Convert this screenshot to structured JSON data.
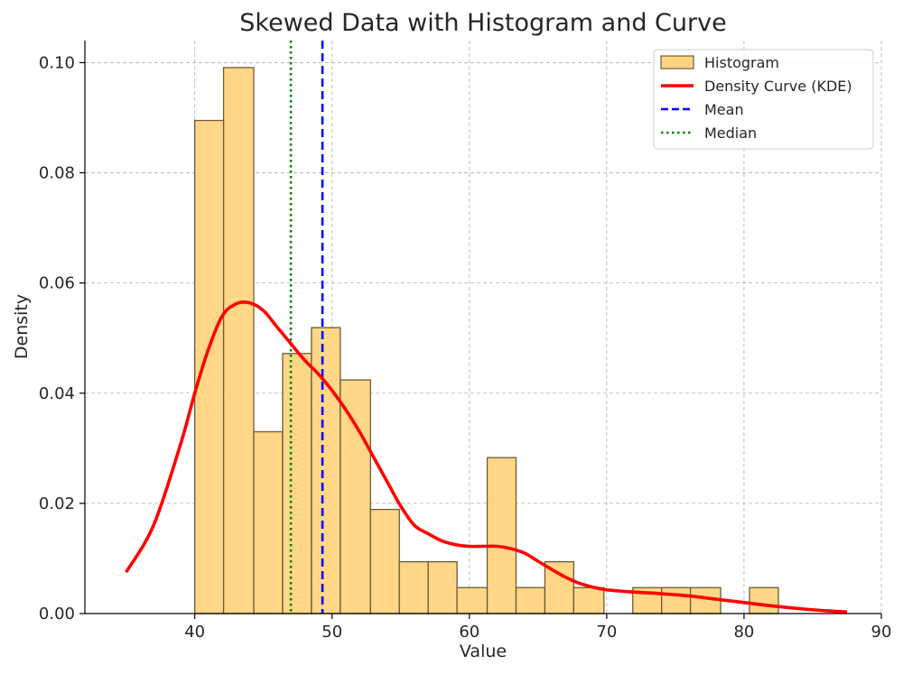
{
  "chart_data": {
    "type": "bar",
    "title": "Skewed Data with Histogram and Curve",
    "xlabel": "Value",
    "ylabel": "Density",
    "xlim": [
      32,
      90
    ],
    "ylim": [
      0,
      0.104
    ],
    "xticks": [
      40,
      50,
      60,
      70,
      80,
      90
    ],
    "yticks": [
      0.0,
      0.02,
      0.04,
      0.06,
      0.08,
      0.1
    ],
    "xtick_labels": [
      "40",
      "50",
      "60",
      "70",
      "80",
      "90"
    ],
    "ytick_labels": [
      "0.00",
      "0.02",
      "0.04",
      "0.06",
      "0.08",
      "0.10"
    ],
    "grid": true,
    "legend_position": "top-right",
    "histogram": {
      "name": "Histogram",
      "color": "#ffd580",
      "edge_color": "#6b5a3a",
      "bins": [
        {
          "x0": 40.0,
          "x1": 42.1,
          "density": 0.0895
        },
        {
          "x0": 42.1,
          "x1": 44.3,
          "density": 0.0991
        },
        {
          "x0": 44.3,
          "x1": 46.4,
          "density": 0.033
        },
        {
          "x0": 46.4,
          "x1": 48.5,
          "density": 0.0472
        },
        {
          "x0": 48.5,
          "x1": 50.6,
          "density": 0.0519
        },
        {
          "x0": 50.6,
          "x1": 52.8,
          "density": 0.0424
        },
        {
          "x0": 52.8,
          "x1": 54.9,
          "density": 0.0189
        },
        {
          "x0": 54.9,
          "x1": 57.0,
          "density": 0.0094
        },
        {
          "x0": 57.0,
          "x1": 59.1,
          "density": 0.0094
        },
        {
          "x0": 59.1,
          "x1": 61.3,
          "density": 0.0047
        },
        {
          "x0": 61.3,
          "x1": 63.4,
          "density": 0.0283
        },
        {
          "x0": 63.4,
          "x1": 65.5,
          "density": 0.0047
        },
        {
          "x0": 65.5,
          "x1": 67.6,
          "density": 0.0094
        },
        {
          "x0": 67.6,
          "x1": 69.8,
          "density": 0.0047
        },
        {
          "x0": 69.8,
          "x1": 71.9,
          "density": 0.0
        },
        {
          "x0": 71.9,
          "x1": 74.0,
          "density": 0.0047
        },
        {
          "x0": 74.0,
          "x1": 76.1,
          "density": 0.0047
        },
        {
          "x0": 76.1,
          "x1": 78.3,
          "density": 0.0047
        },
        {
          "x0": 78.3,
          "x1": 80.4,
          "density": 0.0
        },
        {
          "x0": 80.4,
          "x1": 82.5,
          "density": 0.0047
        }
      ]
    },
    "kde": {
      "name": "Density Curve (KDE)",
      "color": "#ff0000",
      "x": [
        35,
        37,
        39,
        40,
        41,
        42,
        43,
        44,
        45,
        46,
        47,
        48,
        49,
        50,
        51,
        52,
        53,
        54,
        55,
        56,
        57,
        58,
        59,
        60,
        61,
        62,
        63,
        64,
        65,
        66,
        67,
        68,
        69,
        70,
        72,
        74,
        76,
        78,
        80,
        82,
        84,
        86,
        87.5
      ],
      "y": [
        0.0075,
        0.016,
        0.031,
        0.04,
        0.048,
        0.054,
        0.0562,
        0.0564,
        0.055,
        0.052,
        0.049,
        0.046,
        0.0435,
        0.0405,
        0.037,
        0.033,
        0.0285,
        0.024,
        0.0195,
        0.016,
        0.0145,
        0.0132,
        0.0125,
        0.0122,
        0.0122,
        0.0122,
        0.0118,
        0.011,
        0.0095,
        0.008,
        0.0066,
        0.0055,
        0.0048,
        0.0043,
        0.0039,
        0.0036,
        0.0032,
        0.0026,
        0.002,
        0.0014,
        0.0009,
        0.0005,
        0.0003
      ]
    },
    "mean": {
      "name": "Mean",
      "value": 49.3,
      "color": "#0000ff"
    },
    "median": {
      "name": "Median",
      "value": 47.0,
      "color": "#008000"
    }
  }
}
